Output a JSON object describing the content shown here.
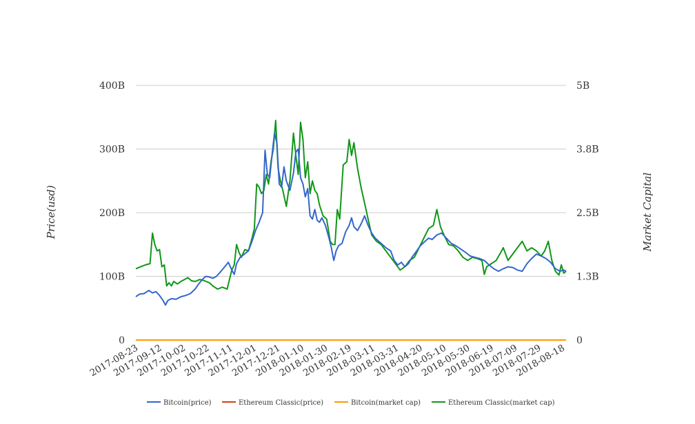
{
  "chart_data": {
    "type": "line",
    "title": "",
    "ylabel_left": "Price(usd)",
    "ylabel_right": "Market Capital",
    "y_left": {
      "ticks": [
        "0",
        "100B",
        "200B",
        "300B",
        "400B"
      ],
      "range": [
        0,
        400
      ]
    },
    "y_right": {
      "ticks": [
        "0",
        "1.3B",
        "2.5B",
        "3.8B",
        "5B"
      ],
      "range": [
        0,
        5
      ]
    },
    "x_range": [
      "2017-08-23",
      "2018-08-21"
    ],
    "x_ticks": [
      "2017-08-23",
      "2017-09-12",
      "2017-10-02",
      "2017-10-22",
      "2017-11-11",
      "2017-12-01",
      "2017-12-21",
      "2018-01-10",
      "2018-01-30",
      "2018-02-19",
      "2018-03-11",
      "2018-03-31",
      "2018-04-20",
      "2018-05-10",
      "2018-05-30",
      "2018-06-19",
      "2018-07-09",
      "2018-07-29",
      "2018-08-18"
    ],
    "grid": "horizontal",
    "legend_position": "bottom",
    "series": [
      {
        "name": "Bitcoin(price)",
        "axis": "left",
        "color": "#3366cc",
        "points": [
          [
            "2017-08-23",
            68
          ],
          [
            "2017-08-26",
            72
          ],
          [
            "2017-08-30",
            73
          ],
          [
            "2017-09-03",
            78
          ],
          [
            "2017-09-06",
            74
          ],
          [
            "2017-09-09",
            76
          ],
          [
            "2017-09-12",
            70
          ],
          [
            "2017-09-15",
            62
          ],
          [
            "2017-09-17",
            55
          ],
          [
            "2017-09-19",
            62
          ],
          [
            "2017-09-22",
            65
          ],
          [
            "2017-09-26",
            64
          ],
          [
            "2017-09-30",
            68
          ],
          [
            "2017-10-04",
            70
          ],
          [
            "2017-10-08",
            73
          ],
          [
            "2017-10-12",
            80
          ],
          [
            "2017-10-15",
            88
          ],
          [
            "2017-10-18",
            95
          ],
          [
            "2017-10-21",
            100
          ],
          [
            "2017-10-24",
            99
          ],
          [
            "2017-10-27",
            97
          ],
          [
            "2017-10-30",
            100
          ],
          [
            "2017-11-02",
            106
          ],
          [
            "2017-11-06",
            115
          ],
          [
            "2017-11-09",
            122
          ],
          [
            "2017-11-12",
            110
          ],
          [
            "2017-11-14",
            103
          ],
          [
            "2017-11-16",
            120
          ],
          [
            "2017-11-19",
            130
          ],
          [
            "2017-11-22",
            134
          ],
          [
            "2017-11-26",
            140
          ],
          [
            "2017-11-29",
            155
          ],
          [
            "2017-12-02",
            172
          ],
          [
            "2017-12-05",
            185
          ],
          [
            "2017-12-08",
            200
          ],
          [
            "2017-12-10",
            298
          ],
          [
            "2017-12-12",
            260
          ],
          [
            "2017-12-14",
            255
          ],
          [
            "2017-12-16",
            292
          ],
          [
            "2017-12-18",
            325
          ],
          [
            "2017-12-20",
            310
          ],
          [
            "2017-12-22",
            245
          ],
          [
            "2017-12-24",
            240
          ],
          [
            "2017-12-26",
            272
          ],
          [
            "2017-12-28",
            250
          ],
          [
            "2017-12-31",
            235
          ],
          [
            "2018-01-03",
            262
          ],
          [
            "2018-01-05",
            295
          ],
          [
            "2018-01-07",
            300
          ],
          [
            "2018-01-09",
            255
          ],
          [
            "2018-01-11",
            245
          ],
          [
            "2018-01-13",
            225
          ],
          [
            "2018-01-15",
            238
          ],
          [
            "2018-01-17",
            195
          ],
          [
            "2018-01-19",
            190
          ],
          [
            "2018-01-21",
            205
          ],
          [
            "2018-01-23",
            188
          ],
          [
            "2018-01-25",
            185
          ],
          [
            "2018-01-27",
            192
          ],
          [
            "2018-01-30",
            180
          ],
          [
            "2018-02-02",
            160
          ],
          [
            "2018-02-04",
            145
          ],
          [
            "2018-02-06",
            125
          ],
          [
            "2018-02-08",
            140
          ],
          [
            "2018-02-10",
            148
          ],
          [
            "2018-02-13",
            152
          ],
          [
            "2018-02-16",
            170
          ],
          [
            "2018-02-19",
            180
          ],
          [
            "2018-02-21",
            192
          ],
          [
            "2018-02-23",
            178
          ],
          [
            "2018-02-26",
            172
          ],
          [
            "2018-03-01",
            182
          ],
          [
            "2018-03-04",
            195
          ],
          [
            "2018-03-07",
            180
          ],
          [
            "2018-03-10",
            168
          ],
          [
            "2018-03-13",
            160
          ],
          [
            "2018-03-16",
            155
          ],
          [
            "2018-03-19",
            150
          ],
          [
            "2018-03-22",
            145
          ],
          [
            "2018-03-26",
            140
          ],
          [
            "2018-03-29",
            125
          ],
          [
            "2018-04-01",
            118
          ],
          [
            "2018-04-04",
            122
          ],
          [
            "2018-04-07",
            115
          ],
          [
            "2018-04-10",
            120
          ],
          [
            "2018-04-13",
            130
          ],
          [
            "2018-04-17",
            140
          ],
          [
            "2018-04-20",
            148
          ],
          [
            "2018-04-24",
            155
          ],
          [
            "2018-04-27",
            160
          ],
          [
            "2018-04-30",
            158
          ],
          [
            "2018-05-04",
            165
          ],
          [
            "2018-05-08",
            168
          ],
          [
            "2018-05-12",
            160
          ],
          [
            "2018-05-16",
            152
          ],
          [
            "2018-05-20",
            148
          ],
          [
            "2018-05-24",
            143
          ],
          [
            "2018-05-28",
            138
          ],
          [
            "2018-06-01",
            132
          ],
          [
            "2018-06-05",
            130
          ],
          [
            "2018-06-09",
            128
          ],
          [
            "2018-06-13",
            125
          ],
          [
            "2018-06-17",
            118
          ],
          [
            "2018-06-21",
            112
          ],
          [
            "2018-06-25",
            108
          ],
          [
            "2018-06-29",
            112
          ],
          [
            "2018-07-03",
            115
          ],
          [
            "2018-07-07",
            114
          ],
          [
            "2018-07-11",
            110
          ],
          [
            "2018-07-15",
            108
          ],
          [
            "2018-07-19",
            120
          ],
          [
            "2018-07-23",
            128
          ],
          [
            "2018-07-27",
            135
          ],
          [
            "2018-07-31",
            132
          ],
          [
            "2018-08-04",
            128
          ],
          [
            "2018-08-08",
            122
          ],
          [
            "2018-08-12",
            112
          ],
          [
            "2018-08-16",
            108
          ],
          [
            "2018-08-19",
            110
          ],
          [
            "2018-08-21",
            108
          ]
        ]
      },
      {
        "name": "Ethereum Classic(price)",
        "axis": "left",
        "color": "#dc3912",
        "points": [
          [
            "2017-08-23",
            0
          ],
          [
            "2018-08-21",
            0
          ]
        ]
      },
      {
        "name": "Bitcoin(market cap)",
        "axis": "left",
        "color": "#ff9900",
        "points": [
          [
            "2017-08-23",
            0
          ],
          [
            "2018-08-21",
            0
          ]
        ]
      },
      {
        "name": "Ethereum Classic(market cap)",
        "axis": "left",
        "color": "#109618",
        "points": [
          [
            "2017-08-23",
            112
          ],
          [
            "2017-08-27",
            115
          ],
          [
            "2017-08-31",
            118
          ],
          [
            "2017-09-04",
            120
          ],
          [
            "2017-09-06",
            168
          ],
          [
            "2017-09-08",
            150
          ],
          [
            "2017-09-10",
            140
          ],
          [
            "2017-09-12",
            142
          ],
          [
            "2017-09-14",
            115
          ],
          [
            "2017-09-16",
            118
          ],
          [
            "2017-09-18",
            85
          ],
          [
            "2017-09-20",
            90
          ],
          [
            "2017-09-22",
            85
          ],
          [
            "2017-09-24",
            92
          ],
          [
            "2017-09-27",
            88
          ],
          [
            "2017-09-30",
            92
          ],
          [
            "2017-10-03",
            95
          ],
          [
            "2017-10-06",
            98
          ],
          [
            "2017-10-09",
            93
          ],
          [
            "2017-10-12",
            92
          ],
          [
            "2017-10-16",
            95
          ],
          [
            "2017-10-20",
            93
          ],
          [
            "2017-10-24",
            90
          ],
          [
            "2017-10-27",
            85
          ],
          [
            "2017-10-31",
            80
          ],
          [
            "2017-11-04",
            83
          ],
          [
            "2017-11-08",
            80
          ],
          [
            "2017-11-10",
            95
          ],
          [
            "2017-11-12",
            110
          ],
          [
            "2017-11-14",
            118
          ],
          [
            "2017-11-16",
            150
          ],
          [
            "2017-11-18",
            138
          ],
          [
            "2017-11-20",
            130
          ],
          [
            "2017-11-23",
            142
          ],
          [
            "2017-11-26",
            140
          ],
          [
            "2017-11-29",
            160
          ],
          [
            "2017-12-01",
            175
          ],
          [
            "2017-12-03",
            245
          ],
          [
            "2017-12-05",
            240
          ],
          [
            "2017-12-07",
            230
          ],
          [
            "2017-12-09",
            235
          ],
          [
            "2017-12-11",
            260
          ],
          [
            "2017-12-13",
            245
          ],
          [
            "2017-12-15",
            280
          ],
          [
            "2017-12-17",
            300
          ],
          [
            "2017-12-19",
            345
          ],
          [
            "2017-12-21",
            270
          ],
          [
            "2017-12-23",
            250
          ],
          [
            "2017-12-25",
            235
          ],
          [
            "2017-12-28",
            210
          ],
          [
            "2017-12-31",
            250
          ],
          [
            "2018-01-03",
            325
          ],
          [
            "2018-01-05",
            290
          ],
          [
            "2018-01-07",
            260
          ],
          [
            "2018-01-09",
            342
          ],
          [
            "2018-01-11",
            315
          ],
          [
            "2018-01-13",
            255
          ],
          [
            "2018-01-15",
            280
          ],
          [
            "2018-01-17",
            230
          ],
          [
            "2018-01-19",
            250
          ],
          [
            "2018-01-21",
            235
          ],
          [
            "2018-01-23",
            230
          ],
          [
            "2018-01-25",
            212
          ],
          [
            "2018-01-28",
            195
          ],
          [
            "2018-01-31",
            190
          ],
          [
            "2018-02-03",
            155
          ],
          [
            "2018-02-05",
            150
          ],
          [
            "2018-02-07",
            150
          ],
          [
            "2018-02-09",
            205
          ],
          [
            "2018-02-11",
            190
          ],
          [
            "2018-02-14",
            275
          ],
          [
            "2018-02-17",
            280
          ],
          [
            "2018-02-19",
            315
          ],
          [
            "2018-02-21",
            290
          ],
          [
            "2018-02-23",
            310
          ],
          [
            "2018-02-26",
            270
          ],
          [
            "2018-03-01",
            240
          ],
          [
            "2018-03-04",
            215
          ],
          [
            "2018-03-07",
            190
          ],
          [
            "2018-03-10",
            165
          ],
          [
            "2018-03-14",
            155
          ],
          [
            "2018-03-18",
            150
          ],
          [
            "2018-03-22",
            140
          ],
          [
            "2018-03-26",
            130
          ],
          [
            "2018-03-30",
            120
          ],
          [
            "2018-04-03",
            110
          ],
          [
            "2018-04-07",
            115
          ],
          [
            "2018-04-11",
            125
          ],
          [
            "2018-04-15",
            130
          ],
          [
            "2018-04-19",
            145
          ],
          [
            "2018-04-23",
            160
          ],
          [
            "2018-04-27",
            175
          ],
          [
            "2018-05-01",
            180
          ],
          [
            "2018-05-04",
            205
          ],
          [
            "2018-05-07",
            178
          ],
          [
            "2018-05-10",
            165
          ],
          [
            "2018-05-14",
            150
          ],
          [
            "2018-05-18",
            148
          ],
          [
            "2018-05-22",
            140
          ],
          [
            "2018-05-26",
            130
          ],
          [
            "2018-05-30",
            125
          ],
          [
            "2018-06-03",
            130
          ],
          [
            "2018-06-07",
            128
          ],
          [
            "2018-06-11",
            125
          ],
          [
            "2018-06-13",
            103
          ],
          [
            "2018-06-15",
            115
          ],
          [
            "2018-06-19",
            120
          ],
          [
            "2018-06-23",
            125
          ],
          [
            "2018-06-27",
            138
          ],
          [
            "2018-06-29",
            145
          ],
          [
            "2018-07-03",
            125
          ],
          [
            "2018-07-07",
            135
          ],
          [
            "2018-07-11",
            145
          ],
          [
            "2018-07-15",
            155
          ],
          [
            "2018-07-19",
            140
          ],
          [
            "2018-07-23",
            145
          ],
          [
            "2018-07-27",
            140
          ],
          [
            "2018-07-31",
            132
          ],
          [
            "2018-08-03",
            140
          ],
          [
            "2018-08-06",
            155
          ],
          [
            "2018-08-09",
            125
          ],
          [
            "2018-08-12",
            108
          ],
          [
            "2018-08-15",
            102
          ],
          [
            "2018-08-17",
            118
          ],
          [
            "2018-08-19",
            105
          ],
          [
            "2018-08-21",
            108
          ]
        ]
      }
    ]
  }
}
